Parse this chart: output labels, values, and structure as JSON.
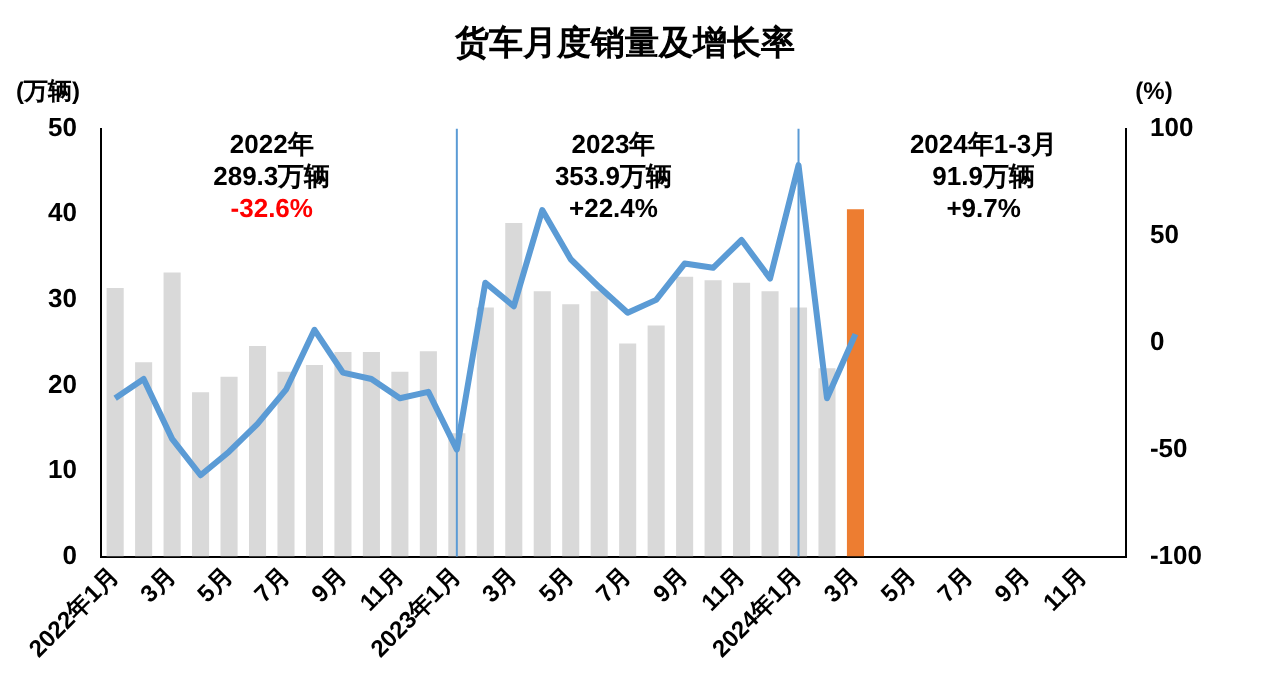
{
  "chart_data": {
    "type": "bar",
    "title": "货车月度销量及增长率",
    "ylabel": "(万辆)",
    "y2label": "(%)",
    "categories": [
      "2022年1月",
      null,
      "3月",
      null,
      "5月",
      null,
      "7月",
      null,
      "9月",
      null,
      "11月",
      null,
      "2023年1月",
      null,
      "3月",
      null,
      "5月",
      null,
      "7月",
      null,
      "9月",
      null,
      "11月",
      null,
      "2024年1月",
      null,
      "3月",
      null,
      "5月",
      null,
      "7月",
      null,
      "9月",
      null,
      "11月",
      null
    ],
    "series": [
      {
        "colors": [
          "#d9d9d9",
          "#d9d9d9",
          "#d9d9d9",
          "#d9d9d9",
          "#d9d9d9",
          "#d9d9d9",
          "#d9d9d9",
          "#d9d9d9",
          "#d9d9d9",
          "#d9d9d9",
          "#d9d9d9",
          "#d9d9d9",
          "#d9d9d9",
          "#d9d9d9",
          "#d9d9d9",
          "#d9d9d9",
          "#d9d9d9",
          "#d9d9d9",
          "#d9d9d9",
          "#d9d9d9",
          "#d9d9d9",
          "#d9d9d9",
          "#d9d9d9",
          "#d9d9d9",
          "#d9d9d9",
          "#d9d9d9",
          "#ed7d31",
          "#d9d9d9",
          "#d9d9d9",
          "#d9d9d9",
          "#d9d9d9",
          "#d9d9d9",
          "#d9d9d9",
          "#d9d9d9",
          "#d9d9d9",
          "#d9d9d9"
        ],
        "values": [
          31.4,
          22.7,
          33.2,
          19.2,
          21.0,
          24.6,
          21.6,
          22.4,
          23.9,
          23.9,
          21.6,
          24.0,
          14.4,
          29.1,
          39.0,
          31.0,
          29.5,
          31.0,
          24.9,
          27.0,
          32.7,
          32.3,
          32.0,
          31.0,
          29.1,
          22.0,
          40.6,
          null,
          null,
          null,
          null,
          null,
          null,
          null,
          null,
          null
        ]
      },
      {
        "type": "line",
        "axis": "y2",
        "color": "#5b9bd5",
        "values": [
          -26,
          -17,
          -45,
          -62,
          -51,
          -38,
          -22,
          6,
          -14,
          -17,
          -26,
          -23,
          -50,
          28,
          17,
          62,
          39,
          26,
          14,
          20,
          37,
          35,
          48,
          30,
          83,
          -26,
          4,
          null,
          null,
          null,
          null,
          null,
          null,
          null,
          null,
          null
        ]
      }
    ],
    "ylim": [
      0,
      50
    ],
    "yticks": [
      0,
      10,
      20,
      30,
      40,
      50
    ],
    "y2lim": [
      -100,
      100
    ],
    "y2ticks": [
      -100,
      -50,
      0,
      50,
      100
    ],
    "ref_lines": [
      {
        "axis": "x",
        "value": "2023年1月",
        "color": "#5b9bd5"
      },
      {
        "axis": "x",
        "value": "2024年1月",
        "color": "#5b9bd5"
      }
    ],
    "annotations": [
      "2022年",
      "289.3万辆",
      "-32.6%",
      "2023年",
      "353.9万辆",
      "+22.4%",
      "2024年1-3月",
      "91.9万辆",
      "+9.7%"
    ],
    "marker": "none",
    "grid": false,
    "legend": false
  }
}
